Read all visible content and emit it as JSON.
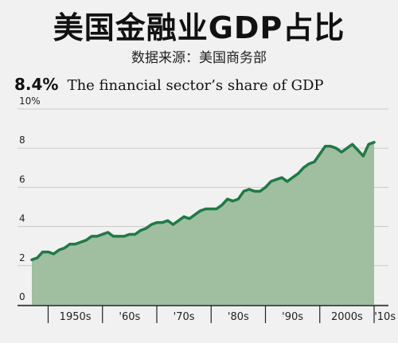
{
  "header": {
    "title": "美国金融业GDP占比",
    "source": "数据来源：美国商务部",
    "highlight_value": "8.4%",
    "highlight_text": "The financial sector’s share of GDP"
  },
  "colors": {
    "line": "#1f7a45",
    "area": "#9fbfa0",
    "grid": "#c9c9c9",
    "background": "#f1f1f1"
  },
  "chart_data": {
    "type": "area",
    "title": "",
    "xlabel": "",
    "ylabel": "",
    "ylim": [
      0,
      10
    ],
    "y_ticks": [
      0,
      2,
      4,
      6,
      8,
      10
    ],
    "y_tick_labels": [
      "0",
      "2",
      "4",
      "6",
      "8",
      "10%"
    ],
    "xlim": [
      1947,
      2010
    ],
    "x_tick_labels": [
      "1950s",
      "'60s",
      "'70s",
      "'80s",
      "'90s",
      "2000s",
      "'10s"
    ],
    "grid": true,
    "series": [
      {
        "x": [
          1947,
          1948,
          1949,
          1950,
          1951,
          1952,
          1953,
          1954,
          1955,
          1956,
          1957,
          1958,
          1959,
          1960,
          1961,
          1962,
          1963,
          1964,
          1965,
          1966,
          1967,
          1968,
          1969,
          1970,
          1971,
          1972,
          1973,
          1974,
          1975,
          1976,
          1977,
          1978,
          1979,
          1980,
          1981,
          1982,
          1983,
          1984,
          1985,
          1986,
          1987,
          1988,
          1989,
          1990,
          1991,
          1992,
          1993,
          1994,
          1995,
          1996,
          1997,
          1998,
          1999,
          2000,
          2001,
          2002,
          2003,
          2004,
          2005,
          2006,
          2007,
          2008,
          2009,
          2010
        ],
        "y": [
          2.3,
          2.4,
          2.7,
          2.7,
          2.6,
          2.8,
          2.9,
          3.1,
          3.1,
          3.2,
          3.3,
          3.5,
          3.5,
          3.6,
          3.7,
          3.5,
          3.5,
          3.5,
          3.6,
          3.6,
          3.8,
          3.9,
          4.1,
          4.2,
          4.2,
          4.3,
          4.1,
          4.3,
          4.5,
          4.4,
          4.6,
          4.8,
          4.9,
          4.9,
          4.9,
          5.1,
          5.4,
          5.3,
          5.4,
          5.8,
          5.9,
          5.8,
          5.8,
          6.0,
          6.3,
          6.4,
          6.5,
          6.3,
          6.5,
          6.7,
          7.0,
          7.2,
          7.3,
          7.7,
          8.1,
          8.1,
          8.0,
          7.8,
          8.0,
          8.2,
          7.9,
          7.6,
          8.2,
          8.3
        ]
      }
    ]
  }
}
